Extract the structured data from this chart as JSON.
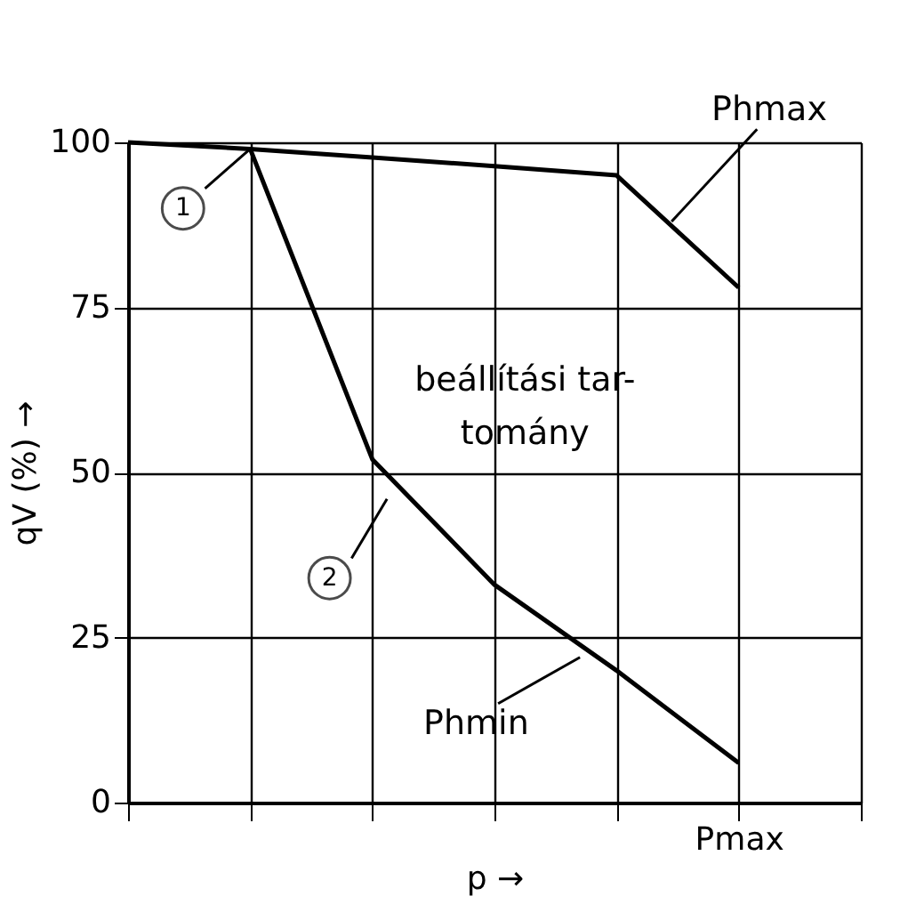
{
  "chart_data": {
    "type": "line",
    "xlabel": "p →",
    "ylabel": "qV (%) →",
    "categories": [
      null,
      null,
      null,
      null,
      null,
      "Pmax",
      null
    ],
    "ylim": [
      0,
      100
    ],
    "yticks": [
      0,
      25,
      50,
      75,
      100
    ],
    "grid": true,
    "marker": "none",
    "line_style": "solid",
    "series": [
      {
        "color": "#000000",
        "values": [
          100,
          99,
          97.7,
          96.4,
          95,
          78,
          null
        ]
      },
      {
        "color": "#000000",
        "values": [
          null,
          99,
          52,
          33,
          20,
          6,
          null
        ]
      }
    ],
    "annotations": [
      "1",
      "2",
      "Phmax",
      "Phmin",
      "beállítási tar-\ntomány"
    ]
  }
}
